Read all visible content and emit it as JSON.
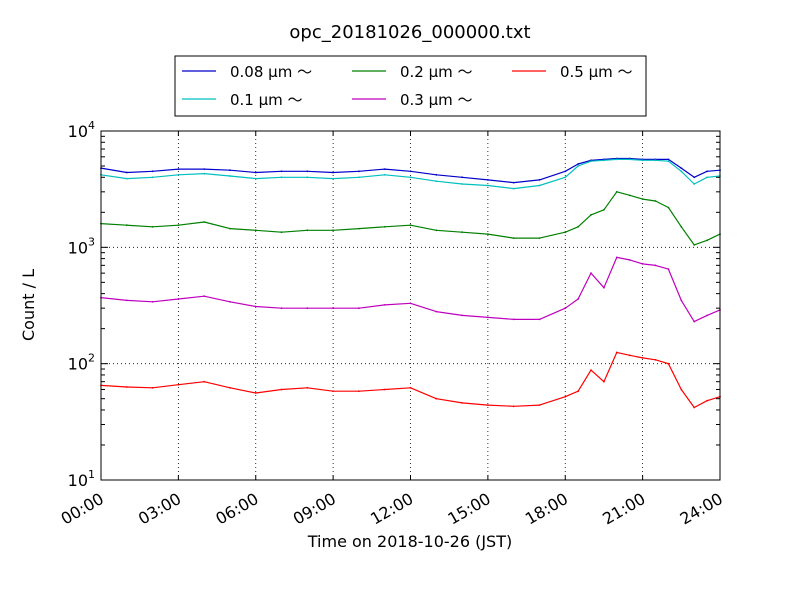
{
  "chart_data": {
    "type": "line",
    "title": "opc_20181026_000000.txt",
    "xlabel": "Time on 2018-10-26 (JST)",
    "ylabel": "Count / L",
    "yscale": "log",
    "ylim": [
      10,
      10000
    ],
    "xlim": [
      "00:00",
      "24:00"
    ],
    "grid": true,
    "legend_position": "top",
    "x_ticks": [
      "00:00",
      "03:00",
      "06:00",
      "09:00",
      "12:00",
      "15:00",
      "18:00",
      "21:00",
      "24:00"
    ],
    "y_ticks": [
      {
        "value": 10,
        "base": "10",
        "exp": "1"
      },
      {
        "value": 100,
        "base": "10",
        "exp": "2"
      },
      {
        "value": 1000,
        "base": "10",
        "exp": "3"
      },
      {
        "value": 10000,
        "base": "10",
        "exp": "4"
      }
    ],
    "x": [
      "00:00",
      "01:00",
      "02:00",
      "03:00",
      "04:00",
      "05:00",
      "06:00",
      "07:00",
      "08:00",
      "09:00",
      "10:00",
      "11:00",
      "12:00",
      "13:00",
      "14:00",
      "15:00",
      "16:00",
      "17:00",
      "18:00",
      "18:30",
      "19:00",
      "19:30",
      "20:00",
      "20:30",
      "21:00",
      "21:30",
      "22:00",
      "22:30",
      "23:00",
      "23:30",
      "24:00"
    ],
    "series": [
      {
        "name": "0.08 μm ～",
        "color": "#0000cc",
        "values": [
          4800,
          4400,
          4500,
          4700,
          4700,
          4600,
          4400,
          4500,
          4500,
          4400,
          4500,
          4700,
          4500,
          4200,
          4000,
          3800,
          3600,
          3800,
          4500,
          5200,
          5600,
          5700,
          5800,
          5800,
          5700,
          5700,
          5700,
          4800,
          4000,
          4500,
          4600
        ]
      },
      {
        "name": "0.1 μm ～",
        "color": "#00bfbf",
        "values": [
          4200,
          3900,
          4000,
          4200,
          4300,
          4100,
          3900,
          4000,
          4000,
          3900,
          4000,
          4200,
          4000,
          3700,
          3500,
          3400,
          3200,
          3400,
          4000,
          5000,
          5500,
          5600,
          5700,
          5700,
          5600,
          5600,
          5500,
          4500,
          3500,
          4000,
          4100
        ]
      },
      {
        "name": "0.2 μm ～",
        "color": "#008000",
        "values": [
          1600,
          1550,
          1500,
          1550,
          1650,
          1450,
          1400,
          1350,
          1400,
          1400,
          1450,
          1500,
          1550,
          1400,
          1350,
          1300,
          1200,
          1200,
          1350,
          1500,
          1900,
          2100,
          3000,
          2800,
          2600,
          2500,
          2200,
          1500,
          1050,
          1150,
          1300
        ]
      },
      {
        "name": "0.3 μm ～",
        "color": "#bf00bf",
        "values": [
          370,
          350,
          340,
          360,
          380,
          340,
          310,
          300,
          300,
          300,
          300,
          320,
          330,
          280,
          260,
          250,
          240,
          240,
          300,
          360,
          600,
          450,
          820,
          780,
          720,
          700,
          650,
          350,
          230,
          260,
          290
        ]
      },
      {
        "name": "0.5 μm ～",
        "color": "#ff0000",
        "values": [
          65,
          63,
          62,
          66,
          70,
          62,
          56,
          60,
          62,
          58,
          58,
          60,
          62,
          50,
          46,
          44,
          43,
          44,
          52,
          58,
          88,
          70,
          125,
          118,
          112,
          108,
          100,
          60,
          42,
          48,
          52
        ]
      }
    ]
  }
}
